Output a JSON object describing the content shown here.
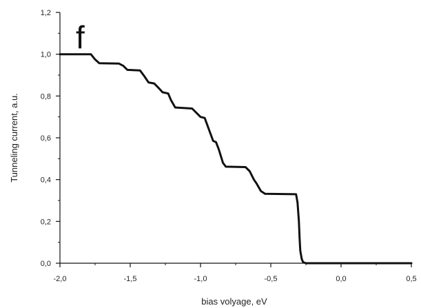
{
  "chart_data": {
    "type": "line",
    "panel_label": "f",
    "xlabel": "bias volyage, eV",
    "ylabel": "Tunneling current, a.u.",
    "xlim": [
      -2.0,
      0.5
    ],
    "ylim": [
      0.0,
      1.2
    ],
    "x_ticks": [
      "-2,0",
      "-1,5",
      "-1,0",
      "-0,5",
      "0,0",
      "0,5"
    ],
    "y_ticks": [
      "0,0",
      "0,2",
      "0,4",
      "0,6",
      "0,8",
      "1,0",
      "1,2"
    ],
    "grid": false,
    "legend": "none",
    "line_color": "#111111",
    "series": [
      {
        "x": [
          -2.0,
          -1.78,
          -1.75,
          -1.72,
          -1.58,
          -1.55,
          -1.52,
          -1.43,
          -1.4,
          -1.37,
          -1.33,
          -1.3,
          -1.27,
          -1.23,
          -1.21,
          -1.18,
          -1.06,
          -1.03,
          -1.0,
          -0.97,
          -0.94,
          -0.91,
          -0.89,
          -0.87,
          -0.84,
          -0.82,
          -0.68,
          -0.65,
          -0.62,
          -0.6,
          -0.57,
          -0.54,
          -0.32,
          -0.31,
          -0.3,
          -0.295,
          -0.29,
          -0.28,
          -0.27,
          -0.25,
          0.5
        ],
        "y": [
          1.0,
          1.0,
          0.975,
          0.957,
          0.955,
          0.945,
          0.925,
          0.922,
          0.895,
          0.865,
          0.86,
          0.84,
          0.818,
          0.812,
          0.78,
          0.745,
          0.74,
          0.72,
          0.7,
          0.695,
          0.64,
          0.585,
          0.58,
          0.545,
          0.48,
          0.462,
          0.46,
          0.44,
          0.4,
          0.38,
          0.345,
          0.332,
          0.33,
          0.29,
          0.2,
          0.12,
          0.06,
          0.02,
          0.005,
          0.0,
          0.0
        ]
      }
    ]
  }
}
